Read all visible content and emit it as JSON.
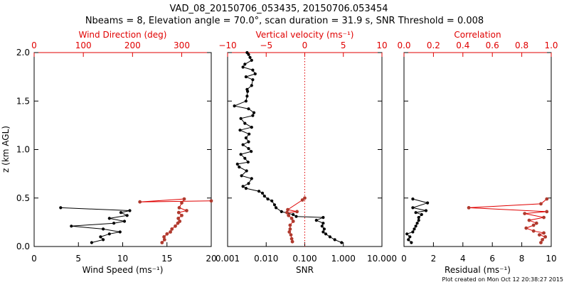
{
  "header": {
    "title": "VAD_08_20150706_053435, 20150706.053454",
    "subtitle": "Nbeams = 8, Elevation angle = 70.0°, scan duration = 31.9 s, SNR Threshold = 0.008"
  },
  "footer": {
    "created": "Plot created on Mon Oct 12 20:38:27 2015"
  },
  "colors": {
    "black": "#000000",
    "red": "#e00000",
    "marker_red": "#b03a2e"
  },
  "chart_data": [
    {
      "type": "line",
      "ylabel": "z (km AGL)",
      "ylim": [
        0,
        2.0
      ],
      "yticks": [
        "0.0",
        "0.5",
        "1.0",
        "1.5",
        "2.0"
      ],
      "xlabel": "Wind Speed (ms⁻¹)",
      "xlim": [
        0,
        20
      ],
      "xticks": [
        "0",
        "5",
        "10",
        "15",
        "20"
      ],
      "top_axis": {
        "label": "Wind Direction (deg)",
        "lim": [
          0,
          360
        ],
        "ticks": [
          "0",
          "100",
          "200",
          "300"
        ],
        "tick_values": [
          0,
          100,
          200,
          300
        ]
      },
      "series": [
        {
          "axis": "bottom",
          "values": [
            [
              6.5,
              0.04
            ],
            [
              7.8,
              0.07
            ],
            [
              7.5,
              0.1
            ],
            [
              8.5,
              0.13
            ],
            [
              9.7,
              0.15
            ],
            [
              7.8,
              0.18
            ],
            [
              4.2,
              0.21
            ],
            [
              9.0,
              0.24
            ],
            [
              10.2,
              0.26
            ],
            [
              8.5,
              0.29
            ],
            [
              10.5,
              0.32
            ],
            [
              9.8,
              0.35
            ],
            [
              10.8,
              0.37
            ],
            [
              3.0,
              0.4
            ]
          ]
        },
        {
          "axis": "top",
          "values": [
            [
              260,
              0.04
            ],
            [
              265,
              0.07
            ],
            [
              264,
              0.1
            ],
            [
              270,
              0.13
            ],
            [
              277,
              0.15
            ],
            [
              280,
              0.18
            ],
            [
              287,
              0.21
            ],
            [
              292,
              0.24
            ],
            [
              296,
              0.26
            ],
            [
              293,
              0.29
            ],
            [
              300,
              0.32
            ],
            [
              294,
              0.35
            ],
            [
              310,
              0.37
            ],
            [
              295,
              0.4
            ],
            [
              300,
              0.45
            ],
            [
              305,
              0.49
            ],
            [
              215,
              0.46
            ],
            [
              360,
              0.47
            ]
          ]
        }
      ]
    },
    {
      "type": "line",
      "xlabel": "SNR",
      "xscale": "log",
      "xlim": [
        0.001,
        10
      ],
      "xticks": [
        "0.001",
        "0.010",
        "0.100",
        "1.000",
        "10.000"
      ],
      "tick_values": [
        0.001,
        0.01,
        0.1,
        1,
        10
      ],
      "top_axis": {
        "label": "Vertical velocity (ms⁻¹)",
        "lim": [
          -10,
          10
        ],
        "ticks": [
          "−10",
          "−5",
          "0",
          "5",
          "10"
        ],
        "tick_values": [
          -10,
          -5,
          0,
          5,
          10
        ],
        "reference_line_at": 0
      },
      "series": [
        {
          "axis": "bottom",
          "values": [
            [
              0.9,
              0.04
            ],
            [
              0.6,
              0.07
            ],
            [
              0.45,
              0.1
            ],
            [
              0.35,
              0.13
            ],
            [
              0.3,
              0.15
            ],
            [
              0.32,
              0.18
            ],
            [
              0.28,
              0.21
            ],
            [
              0.3,
              0.24
            ],
            [
              0.2,
              0.27
            ],
            [
              0.3,
              0.3
            ],
            [
              0.06,
              0.31
            ],
            [
              0.05,
              0.33
            ],
            [
              0.025,
              0.36
            ],
            [
              0.018,
              0.4
            ],
            [
              0.0165,
              0.43
            ],
            [
              0.014,
              0.47
            ],
            [
              0.011,
              0.49
            ],
            [
              0.009,
              0.52
            ],
            [
              0.008,
              0.55
            ],
            [
              0.0065,
              0.57
            ],
            [
              0.003,
              0.6
            ],
            [
              0.0025,
              0.62
            ],
            [
              0.0035,
              0.65
            ],
            [
              0.0042,
              0.7
            ],
            [
              0.0023,
              0.73
            ],
            [
              0.0031,
              0.78
            ],
            [
              0.002,
              0.82
            ],
            [
              0.0018,
              0.85
            ],
            [
              0.0034,
              0.87
            ],
            [
              0.0028,
              0.91
            ],
            [
              0.0022,
              0.95
            ],
            [
              0.0041,
              0.98
            ],
            [
              0.0035,
              1.01
            ],
            [
              0.0025,
              1.05
            ],
            [
              0.0035,
              1.08
            ],
            [
              0.003,
              1.12
            ],
            [
              0.0036,
              1.16
            ],
            [
              0.0021,
              1.2
            ],
            [
              0.0042,
              1.23
            ],
            [
              0.0028,
              1.27
            ],
            [
              0.0022,
              1.32
            ],
            [
              0.0045,
              1.35
            ],
            [
              0.0048,
              1.38
            ],
            [
              0.0035,
              1.42
            ],
            [
              0.0015,
              1.45
            ],
            [
              0.003,
              1.5
            ],
            [
              0.0032,
              1.55
            ],
            [
              0.0033,
              1.6
            ],
            [
              0.0032,
              1.62
            ],
            [
              0.0042,
              1.66
            ],
            [
              0.0045,
              1.72
            ],
            [
              0.003,
              1.75
            ],
            [
              0.0052,
              1.78
            ],
            [
              0.0045,
              1.82
            ],
            [
              0.0025,
              1.85
            ],
            [
              0.0028,
              1.88
            ],
            [
              0.0042,
              1.92
            ],
            [
              0.0038,
              1.95
            ],
            [
              0.0035,
              1.98
            ],
            [
              0.0032,
              2.0
            ]
          ]
        },
        {
          "axis": "top",
          "values": [
            [
              -1.6,
              0.05
            ],
            [
              -1.7,
              0.08
            ],
            [
              -1.8,
              0.12
            ],
            [
              -2.0,
              0.15
            ],
            [
              -1.9,
              0.18
            ],
            [
              -1.9,
              0.22
            ],
            [
              -1.5,
              0.26
            ],
            [
              -1.7,
              0.29
            ],
            [
              -2.1,
              0.32
            ],
            [
              -2.3,
              0.35
            ],
            [
              -1.0,
              0.36
            ],
            [
              -2.2,
              0.38
            ],
            [
              -0.3,
              0.48
            ],
            [
              0.0,
              0.5
            ]
          ]
        }
      ]
    },
    {
      "type": "line",
      "xlabel": "Residual (ms⁻¹)",
      "xlim": [
        0,
        10
      ],
      "xticks": [
        "0",
        "2",
        "4",
        "6",
        "8",
        "10"
      ],
      "top_axis": {
        "label": "Correlation",
        "lim": [
          0,
          1.0
        ],
        "ticks": [
          "0.0",
          "0.2",
          "0.4",
          "0.6",
          "0.8",
          "1.0"
        ],
        "tick_values": [
          0,
          0.2,
          0.4,
          0.6,
          0.8,
          1.0
        ]
      },
      "series": [
        {
          "axis": "bottom",
          "values": [
            [
              0.5,
              0.04
            ],
            [
              0.3,
              0.07
            ],
            [
              0.4,
              0.1
            ],
            [
              0.2,
              0.13
            ],
            [
              0.6,
              0.15
            ],
            [
              0.7,
              0.18
            ],
            [
              0.8,
              0.21
            ],
            [
              0.9,
              0.24
            ],
            [
              1.0,
              0.27
            ],
            [
              1.0,
              0.3
            ],
            [
              1.2,
              0.33
            ],
            [
              0.8,
              0.35
            ],
            [
              1.5,
              0.37
            ],
            [
              0.6,
              0.4
            ],
            [
              1.6,
              0.45
            ],
            [
              0.6,
              0.49
            ]
          ]
        },
        {
          "axis": "top",
          "values": [
            [
              0.93,
              0.04
            ],
            [
              0.94,
              0.07
            ],
            [
              0.96,
              0.1
            ],
            [
              0.92,
              0.12
            ],
            [
              0.95,
              0.14
            ],
            [
              0.88,
              0.16
            ],
            [
              0.83,
              0.19
            ],
            [
              0.88,
              0.22
            ],
            [
              0.9,
              0.24
            ],
            [
              0.85,
              0.27
            ],
            [
              0.95,
              0.3
            ],
            [
              0.82,
              0.34
            ],
            [
              0.97,
              0.36
            ],
            [
              0.44,
              0.4
            ],
            [
              0.93,
              0.44
            ],
            [
              0.97,
              0.49
            ]
          ]
        }
      ]
    }
  ]
}
